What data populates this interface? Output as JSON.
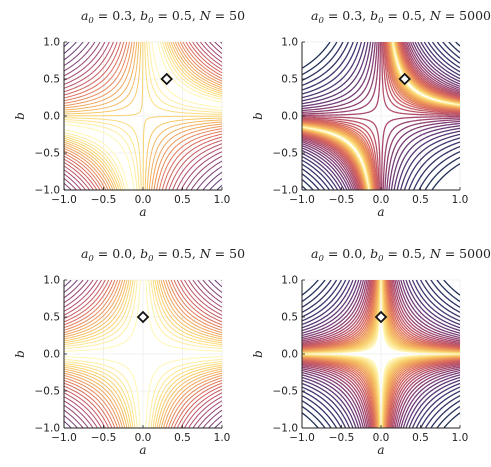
{
  "chart_data": [
    {
      "type": "contour",
      "title": "a_0 = 0.3, b_0 = 0.5, N = 50",
      "title_parts": {
        "a_sym": "a",
        "a_sub": "0",
        "a_val": " = 0.3, ",
        "b_sym": "b",
        "b_sub": "0",
        "b_val": " = 0.5, ",
        "n_sym": "N",
        "n_val": " = 50"
      },
      "a0": 0.3,
      "b0": 0.5,
      "N": 50,
      "xlabel": "a",
      "ylabel": "b",
      "xlim": [
        -1.0,
        1.0
      ],
      "ylim": [
        -1.0,
        1.0
      ],
      "marker": {
        "x": 0.3,
        "y": 0.5,
        "shape": "diamond"
      },
      "grid": true
    },
    {
      "type": "contour",
      "title": "a_0 = 0.3, b_0 = 0.5, N = 5000",
      "title_parts": {
        "a_sym": "a",
        "a_sub": "0",
        "a_val": " = 0.3, ",
        "b_sym": "b",
        "b_sub": "0",
        "b_val": " = 0.5, ",
        "n_sym": "N",
        "n_val": " = 5000"
      },
      "a0": 0.3,
      "b0": 0.5,
      "N": 5000,
      "xlabel": "a",
      "ylabel": "b",
      "xlim": [
        -1.0,
        1.0
      ],
      "ylim": [
        -1.0,
        1.0
      ],
      "marker": {
        "x": 0.3,
        "y": 0.5,
        "shape": "diamond"
      },
      "grid": true
    },
    {
      "type": "contour",
      "title": "a_0 = 0.0, b_0 = 0.5, N = 50",
      "title_parts": {
        "a_sym": "a",
        "a_sub": "0",
        "a_val": " = 0.0, ",
        "b_sym": "b",
        "b_sub": "0",
        "b_val": " = 0.5, ",
        "n_sym": "N",
        "n_val": " = 50"
      },
      "a0": 0.0,
      "b0": 0.5,
      "N": 50,
      "xlabel": "a",
      "ylabel": "b",
      "xlim": [
        -1.0,
        1.0
      ],
      "ylim": [
        -1.0,
        1.0
      ],
      "marker": {
        "x": 0.0,
        "y": 0.5,
        "shape": "diamond"
      },
      "grid": true
    },
    {
      "type": "contour",
      "title": "a_0 = 0.0, b_0 = 0.5, N = 5000",
      "title_parts": {
        "a_sym": "a",
        "a_sub": "0",
        "a_val": " = 0.0, ",
        "b_sym": "b",
        "b_sub": "0",
        "b_val": " = 0.5, ",
        "n_sym": "N",
        "n_val": " = 5000"
      },
      "a0": 0.0,
      "b0": 0.5,
      "N": 5000,
      "xlabel": "a",
      "ylabel": "b",
      "xlim": [
        -1.0,
        1.0
      ],
      "ylim": [
        -1.0,
        1.0
      ],
      "marker": {
        "x": 0.0,
        "y": 0.5,
        "shape": "diamond"
      },
      "grid": true
    }
  ],
  "ticks": {
    "x": [
      -1.0,
      -0.5,
      0.0,
      0.5,
      1.0
    ],
    "x_labels": [
      "−1.0",
      "−0.5",
      "0.0",
      "0.5",
      "1.0"
    ],
    "y": [
      -1.0,
      -0.5,
      0.0,
      0.5,
      1.0
    ],
    "y_labels": [
      "−1.0",
      "−0.5",
      "0.0",
      "0.5",
      "1.0"
    ]
  },
  "colormap": [
    "#fff6b5",
    "#f8d26c",
    "#f0a05a",
    "#d8665d",
    "#a8486d",
    "#6f3b78",
    "#3d3670",
    "#1f2f55"
  ]
}
